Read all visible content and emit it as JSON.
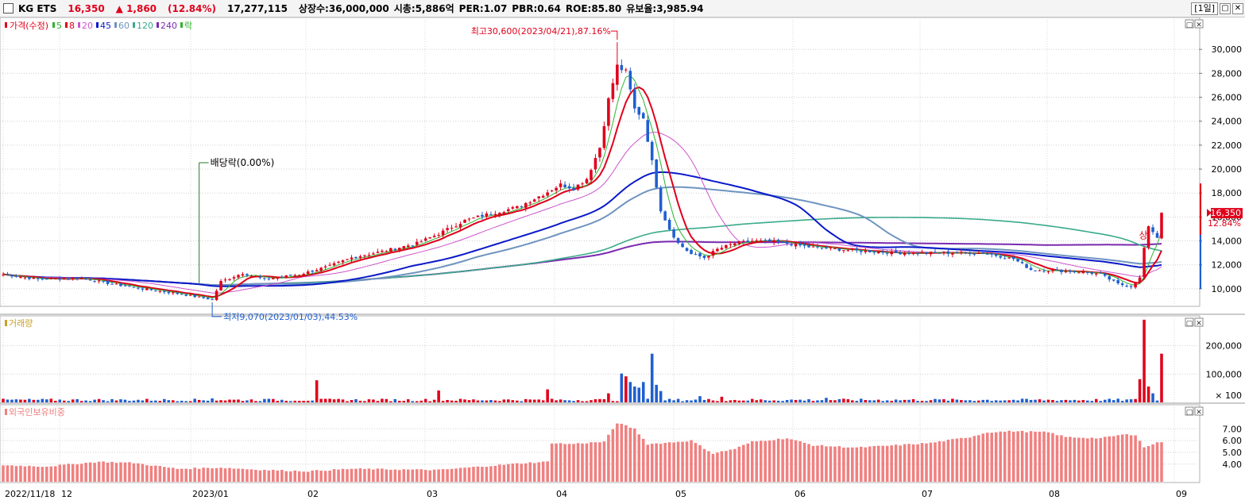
{
  "header": {
    "name": "KG ETS",
    "price": "16,350",
    "change": "▲ 1,860",
    "change_pct": "(12.84%)",
    "volume": "17,277,115",
    "listed_shares": "상장수:36,000,000",
    "market_cap": "시총:5,886억",
    "per": "PER:1.07",
    "pbr": "PBR:0.64",
    "roe": "ROE:85.80",
    "retention": "유보율:3,985.94",
    "period": "[1일]",
    "btn_max": "▢",
    "btn_close": "✕"
  },
  "colors": {
    "up": "#e0001b",
    "down": "#1f5fd0",
    "ma5": "#2db52d",
    "ma8": "#e0001b",
    "ma20": "#cc55cc",
    "ma45": "#0a19c8",
    "ma60": "#6f94c0",
    "ma120": "#3aaa8a",
    "ma240": "#7a2ab0",
    "foreign": "#f08080"
  },
  "chart_data": [
    {
      "type": "candlestick",
      "legend": [
        {
          "label": "가격(수정)",
          "color": "#e0001b"
        },
        {
          "label": "5",
          "color": "#2db52d"
        },
        {
          "label": "8",
          "color": "#e0001b"
        },
        {
          "label": "20",
          "color": "#cc55cc"
        },
        {
          "label": "45",
          "color": "#0a19c8"
        },
        {
          "label": "60",
          "color": "#6f94c0"
        },
        {
          "label": "120",
          "color": "#3aaa8a"
        },
        {
          "label": "240",
          "color": "#7a2ab0"
        },
        {
          "label": "락",
          "color": "#2db52d"
        }
      ],
      "y_ticks": [
        "30,000",
        "28,000",
        "26,000",
        "24,000",
        "22,000",
        "20,000",
        "18,000",
        "16,000",
        "14,000",
        "12,000",
        "10,000"
      ],
      "ylim": [
        8600,
        32600
      ],
      "x_ticks": [
        "2022/11/18",
        "12",
        "2023/01",
        "02",
        "03",
        "04",
        "05",
        "06",
        "07",
        "08",
        "09"
      ],
      "close_path": [
        [
          0,
          11200
        ],
        [
          8,
          10800
        ],
        [
          18,
          10900
        ],
        [
          25,
          10400
        ],
        [
          32,
          10000
        ],
        [
          40,
          9600
        ],
        [
          45,
          9300
        ],
        [
          48,
          9100
        ],
        [
          50,
          10600
        ],
        [
          55,
          11300
        ],
        [
          60,
          10800
        ],
        [
          68,
          11200
        ],
        [
          75,
          11900
        ],
        [
          80,
          12600
        ],
        [
          88,
          13200
        ],
        [
          95,
          13800
        ],
        [
          100,
          14600
        ],
        [
          106,
          15700
        ],
        [
          112,
          16300
        ],
        [
          118,
          16800
        ],
        [
          124,
          17900
        ],
        [
          128,
          18700
        ],
        [
          131,
          18400
        ],
        [
          134,
          19200
        ],
        [
          137,
          21800
        ],
        [
          139,
          25800
        ],
        [
          141,
          28600
        ],
        [
          143,
          28100
        ],
        [
          145,
          25000
        ],
        [
          147,
          24300
        ],
        [
          149,
          20600
        ],
        [
          151,
          16600
        ],
        [
          153,
          15000
        ],
        [
          155,
          13800
        ],
        [
          158,
          12900
        ],
        [
          161,
          12600
        ],
        [
          164,
          13300
        ],
        [
          168,
          13800
        ],
        [
          172,
          14000
        ],
        [
          178,
          13900
        ],
        [
          185,
          13500
        ],
        [
          195,
          13200
        ],
        [
          205,
          13000
        ],
        [
          215,
          13000
        ],
        [
          225,
          13000
        ],
        [
          232,
          12500
        ],
        [
          236,
          11600
        ],
        [
          242,
          11500
        ],
        [
          248,
          11400
        ],
        [
          252,
          11200
        ],
        [
          256,
          10400
        ],
        [
          259,
          10200
        ],
        [
          261,
          10900
        ],
        [
          262,
          13400
        ],
        [
          263,
          15100
        ],
        [
          264,
          14800
        ],
        [
          265,
          14300
        ],
        [
          266,
          16350
        ]
      ],
      "annotations": [
        {
          "text": "최고30,600(2023/04/21),87.16%",
          "value": 30600
        },
        {
          "text": "최저9,070(2023/01/03),44.53%",
          "value": 9070
        },
        {
          "text": "배당락(0.00%)",
          "value": 10400
        },
        {
          "text": "상",
          "value": 14200
        }
      ],
      "last_price_tag": {
        "price": "16,350",
        "pct": "12.84%",
        "value": 16350
      }
    },
    {
      "type": "bar",
      "legend": [
        {
          "label": "거래량",
          "color": "#c8a028"
        }
      ],
      "y_ticks": [
        "200,000",
        "100,000"
      ],
      "unit_label": "× 100",
      "ylim": [
        0,
        300000
      ],
      "spikes": [
        [
          48,
          14000
        ],
        [
          62,
          12000
        ],
        [
          72,
          78000
        ],
        [
          100,
          42000
        ],
        [
          125,
          46000
        ],
        [
          139,
          32000
        ],
        [
          142,
          102000
        ],
        [
          143,
          92000
        ],
        [
          144,
          72000
        ],
        [
          145,
          56000
        ],
        [
          146,
          52000
        ],
        [
          147,
          72000
        ],
        [
          149,
          172000
        ],
        [
          150,
          62000
        ],
        [
          151,
          40000
        ],
        [
          160,
          22000
        ],
        [
          165,
          20000
        ],
        [
          189,
          16000
        ],
        [
          261,
          82000
        ],
        [
          262,
          292000
        ],
        [
          263,
          56000
        ],
        [
          264,
          32000
        ],
        [
          266,
          172000
        ]
      ]
    },
    {
      "type": "bar",
      "legend": [
        {
          "label": "외국인보유비중",
          "color": "#f08080"
        }
      ],
      "y_ticks": [
        "7.00",
        "6.00",
        "5.00",
        "4.00"
      ],
      "ylim": [
        2.5,
        8.3
      ],
      "path": [
        [
          0,
          3.9
        ],
        [
          10,
          3.8
        ],
        [
          22,
          4.2
        ],
        [
          30,
          4.1
        ],
        [
          40,
          3.6
        ],
        [
          50,
          3.7
        ],
        [
          60,
          3.5
        ],
        [
          70,
          3.4
        ],
        [
          80,
          3.6
        ],
        [
          100,
          3.5
        ],
        [
          110,
          3.8
        ],
        [
          120,
          4.1
        ],
        [
          125,
          4.2
        ],
        [
          126,
          5.8
        ],
        [
          130,
          5.7
        ],
        [
          138,
          5.9
        ],
        [
          141,
          7.5
        ],
        [
          145,
          7.0
        ],
        [
          148,
          5.7
        ],
        [
          152,
          5.8
        ],
        [
          158,
          6.0
        ],
        [
          163,
          4.9
        ],
        [
          168,
          5.3
        ],
        [
          172,
          5.9
        ],
        [
          180,
          6.2
        ],
        [
          186,
          5.6
        ],
        [
          196,
          5.4
        ],
        [
          205,
          5.6
        ],
        [
          213,
          5.8
        ],
        [
          222,
          6.3
        ],
        [
          226,
          6.7
        ],
        [
          232,
          6.8
        ],
        [
          240,
          6.7
        ],
        [
          244,
          6.3
        ],
        [
          252,
          6.2
        ],
        [
          257,
          6.5
        ],
        [
          260,
          6.5
        ],
        [
          261,
          6.0
        ],
        [
          262,
          5.4
        ],
        [
          264,
          5.7
        ],
        [
          266,
          5.9
        ]
      ]
    }
  ]
}
